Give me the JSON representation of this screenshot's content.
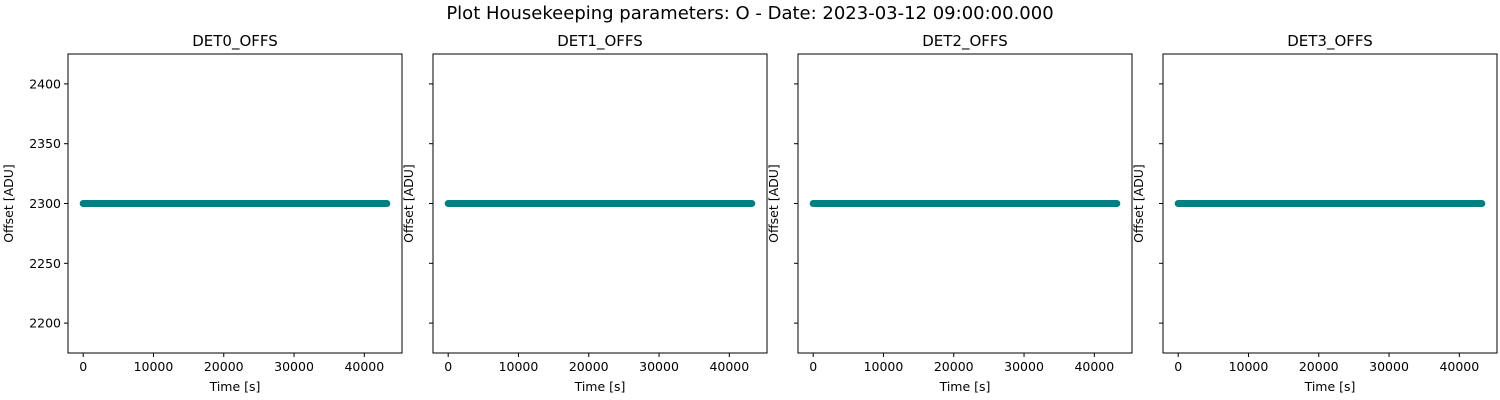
{
  "figure": {
    "suptitle": "Plot Housekeeping parameters: O - Date: 2023-03-12 09:00:00.000"
  },
  "chart_data": [
    {
      "type": "scatter",
      "title": "DET0_OFFS",
      "xlabel": "Time [s]",
      "ylabel": "Offset [ADU]",
      "xlim": [
        -2160,
        45360
      ],
      "ylim": [
        2175,
        2425
      ],
      "xticks": [
        0,
        10000,
        20000,
        30000,
        40000
      ],
      "yticks": [
        2200,
        2250,
        2300,
        2350,
        2400
      ],
      "show_ytick_labels": true,
      "grid": false,
      "series": [
        {
          "x_start": 0,
          "x_end": 43200,
          "y": 2300,
          "color": "#008080"
        }
      ]
    },
    {
      "type": "scatter",
      "title": "DET1_OFFS",
      "xlabel": "Time [s]",
      "ylabel": "Offset [ADU]",
      "xlim": [
        -2160,
        45360
      ],
      "ylim": [
        2175,
        2425
      ],
      "xticks": [
        0,
        10000,
        20000,
        30000,
        40000
      ],
      "yticks": [
        2200,
        2250,
        2300,
        2350,
        2400
      ],
      "show_ytick_labels": false,
      "grid": false,
      "series": [
        {
          "x_start": 0,
          "x_end": 43200,
          "y": 2300,
          "color": "#008080"
        }
      ]
    },
    {
      "type": "scatter",
      "title": "DET2_OFFS",
      "xlabel": "Time [s]",
      "ylabel": "Offset [ADU]",
      "xlim": [
        -2160,
        45360
      ],
      "ylim": [
        2175,
        2425
      ],
      "xticks": [
        0,
        10000,
        20000,
        30000,
        40000
      ],
      "yticks": [
        2200,
        2250,
        2300,
        2350,
        2400
      ],
      "show_ytick_labels": false,
      "grid": false,
      "series": [
        {
          "x_start": 0,
          "x_end": 43200,
          "y": 2300,
          "color": "#008080"
        }
      ]
    },
    {
      "type": "scatter",
      "title": "DET3_OFFS",
      "xlabel": "Time [s]",
      "ylabel": "Offset [ADU]",
      "xlim": [
        -2160,
        45360
      ],
      "ylim": [
        2175,
        2425
      ],
      "xticks": [
        0,
        10000,
        20000,
        30000,
        40000
      ],
      "yticks": [
        2200,
        2250,
        2300,
        2350,
        2400
      ],
      "show_ytick_labels": false,
      "grid": false,
      "series": [
        {
          "x_start": 0,
          "x_end": 43200,
          "y": 2300,
          "color": "#008080"
        }
      ]
    }
  ]
}
